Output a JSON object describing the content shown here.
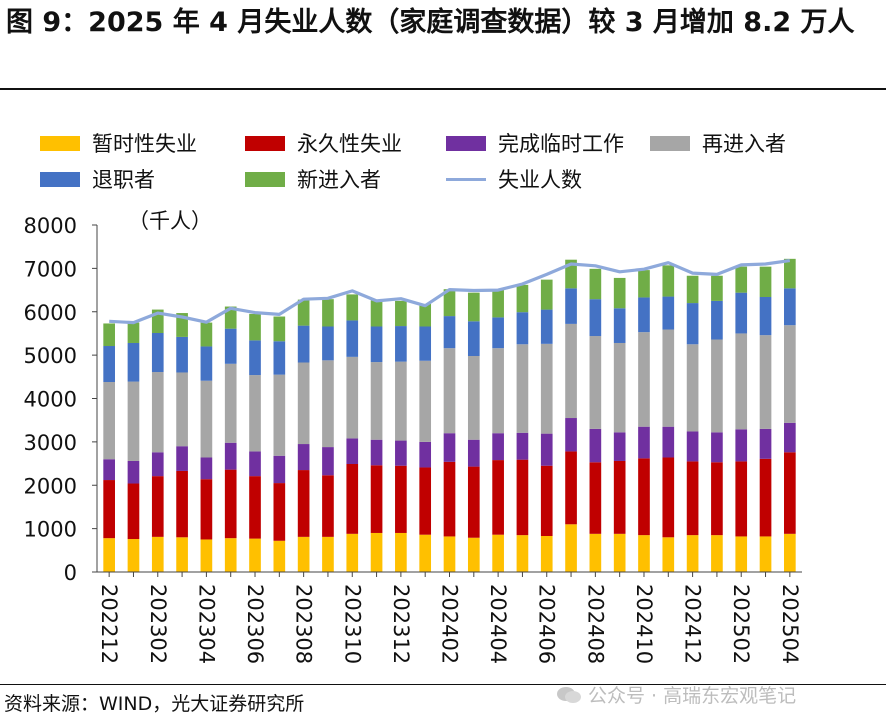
{
  "title": "图 9：2025 年 4 月失业人数（家庭调查数据）较 3 月增加 8.2 万人",
  "source": "资料来源：WIND，光大证券研究所",
  "watermark": "公众号 · 高瑞东宏观笔记",
  "chart_data": {
    "type": "bar",
    "stacked": true,
    "unit_label": "（千人）",
    "ylim": [
      0,
      8000
    ],
    "yticks": [
      0,
      1000,
      2000,
      3000,
      4000,
      5000,
      6000,
      7000,
      8000
    ],
    "legend_position": "top",
    "grid": false,
    "categories": [
      "202212",
      "202301",
      "202302",
      "202303",
      "202304",
      "202305",
      "202306",
      "202307",
      "202308",
      "202309",
      "202310",
      "202311",
      "202312",
      "202401",
      "202402",
      "202403",
      "202404",
      "202405",
      "202406",
      "202407",
      "202408",
      "202409",
      "202410",
      "202411",
      "202412",
      "202501",
      "202502",
      "202503",
      "202504"
    ],
    "xtick_labels": [
      "202212",
      "202302",
      "202304",
      "202306",
      "202308",
      "202310",
      "202312",
      "202402",
      "202404",
      "202406",
      "202408",
      "202410",
      "202412",
      "202502",
      "202504"
    ],
    "series": [
      {
        "name": "暂时性失业",
        "color": "#FFC000",
        "values": [
          780,
          760,
          810,
          800,
          750,
          780,
          770,
          720,
          810,
          810,
          880,
          900,
          900,
          860,
          820,
          790,
          860,
          850,
          830,
          1100,
          880,
          880,
          850,
          800,
          850,
          850,
          820,
          820,
          880
        ]
      },
      {
        "name": "永久性失业",
        "color": "#C00000",
        "values": [
          1340,
          1280,
          1400,
          1530,
          1390,
          1580,
          1440,
          1330,
          1540,
          1420,
          1610,
          1560,
          1550,
          1550,
          1720,
          1640,
          1720,
          1740,
          1620,
          1680,
          1650,
          1680,
          1770,
          1840,
          1700,
          1680,
          1730,
          1790,
          1880
        ]
      },
      {
        "name": "完成临时工作",
        "color": "#7030A0",
        "values": [
          480,
          520,
          550,
          570,
          500,
          620,
          570,
          630,
          600,
          650,
          590,
          590,
          580,
          590,
          660,
          620,
          620,
          620,
          740,
          770,
          770,
          660,
          730,
          710,
          690,
          690,
          740,
          690,
          680
        ]
      },
      {
        "name": "再进入者",
        "color": "#A6A6A6",
        "values": [
          1780,
          1830,
          1850,
          1700,
          1770,
          1820,
          1760,
          1870,
          1880,
          2000,
          1880,
          1790,
          1820,
          1870,
          1960,
          1930,
          1960,
          2040,
          2070,
          2170,
          2140,
          2060,
          2180,
          2240,
          2010,
          2140,
          2210,
          2160,
          2250
        ]
      },
      {
        "name": "退职者",
        "color": "#4472C4",
        "values": [
          830,
          890,
          900,
          820,
          790,
          810,
          800,
          770,
          850,
          780,
          840,
          820,
          820,
          790,
          740,
          800,
          710,
          740,
          790,
          820,
          850,
          800,
          800,
          760,
          950,
          890,
          940,
          880,
          850
        ]
      },
      {
        "name": "新进入者",
        "color": "#70AD47",
        "values": [
          520,
          470,
          540,
          550,
          550,
          510,
          610,
          570,
          600,
          630,
          600,
          600,
          580,
          520,
          620,
          660,
          630,
          630,
          690,
          660,
          700,
          700,
          630,
          720,
          630,
          580,
          600,
          700,
          680
        ]
      }
    ],
    "line": {
      "name": "失业人数",
      "color": "#8EA9DB",
      "values": [
        5780,
        5750,
        5970,
        5880,
        5760,
        6080,
        5980,
        5940,
        6290,
        6310,
        6480,
        6250,
        6300,
        6140,
        6510,
        6490,
        6500,
        6640,
        6860,
        7100,
        7060,
        6920,
        6980,
        7130,
        6890,
        6860,
        7080,
        7100,
        7180
      ]
    }
  }
}
